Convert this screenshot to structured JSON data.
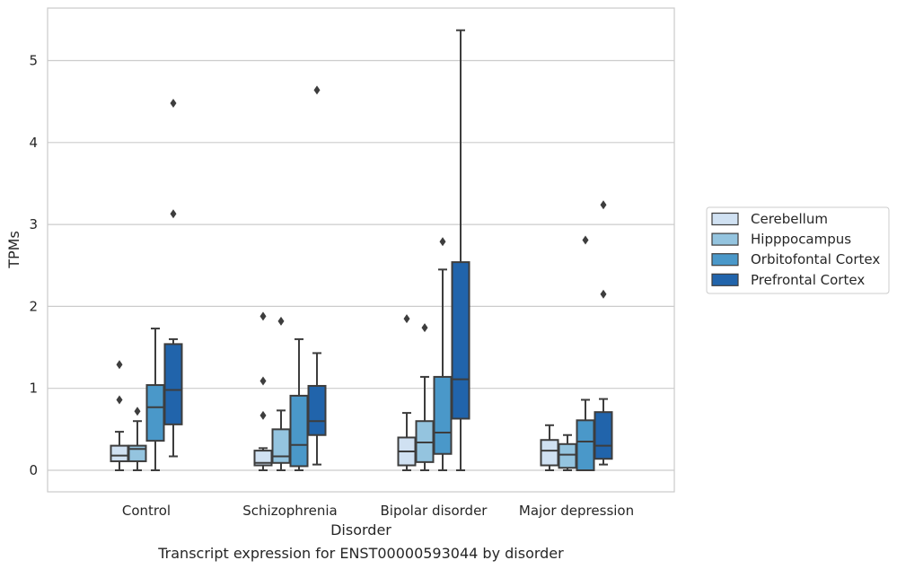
{
  "chart_data": {
    "type": "box",
    "caption": "Transcript expression for ENST00000593044 by disorder",
    "xlabel": "Disorder",
    "ylabel": "TPMs",
    "ylim": [
      -0.25,
      5.65
    ],
    "yticks": [
      "0",
      "1",
      "2",
      "3",
      "4",
      "5"
    ],
    "grid": true,
    "legend_position": "right",
    "categories": [
      "Control",
      "Schizophrenia",
      "Bipolar disorder",
      "Major depression"
    ],
    "series": [
      {
        "name": "Cerebellum",
        "color": "#d0e1f2",
        "boxes": [
          {
            "whislo": 0.0,
            "q1": 0.11,
            "med": 0.18,
            "q3": 0.3,
            "whishi": 0.47,
            "fliers": [
              0.86,
              1.29
            ]
          },
          {
            "whislo": 0.0,
            "q1": 0.06,
            "med": 0.09,
            "q3": 0.24,
            "whishi": 0.27,
            "fliers": [
              0.67,
              1.09,
              1.88
            ]
          },
          {
            "whislo": 0.0,
            "q1": 0.06,
            "med": 0.23,
            "q3": 0.4,
            "whishi": 0.7,
            "fliers": [
              1.85
            ]
          },
          {
            "whislo": 0.0,
            "q1": 0.06,
            "med": 0.24,
            "q3": 0.37,
            "whishi": 0.55,
            "fliers": []
          }
        ]
      },
      {
        "name": "Hipppocampus",
        "color": "#94c4df",
        "boxes": [
          {
            "whislo": 0.0,
            "q1": 0.11,
            "med": 0.26,
            "q3": 0.3,
            "whishi": 0.6,
            "fliers": [
              0.72
            ]
          },
          {
            "whislo": 0.0,
            "q1": 0.09,
            "med": 0.17,
            "q3": 0.5,
            "whishi": 0.73,
            "fliers": [
              1.82
            ]
          },
          {
            "whislo": 0.0,
            "q1": 0.1,
            "med": 0.34,
            "q3": 0.6,
            "whishi": 1.14,
            "fliers": [
              1.74
            ]
          },
          {
            "whislo": 0.0,
            "q1": 0.03,
            "med": 0.19,
            "q3": 0.32,
            "whishi": 0.43,
            "fliers": []
          }
        ]
      },
      {
        "name": "Orbitofontal Cortex",
        "color": "#4a98c9",
        "boxes": [
          {
            "whislo": 0.0,
            "q1": 0.36,
            "med": 0.77,
            "q3": 1.04,
            "whishi": 1.73,
            "fliers": []
          },
          {
            "whislo": 0.0,
            "q1": 0.05,
            "med": 0.31,
            "q3": 0.91,
            "whishi": 1.6,
            "fliers": []
          },
          {
            "whislo": 0.0,
            "q1": 0.2,
            "med": 0.46,
            "q3": 1.14,
            "whishi": 2.45,
            "fliers": [
              2.79
            ]
          },
          {
            "whislo": 0.0,
            "q1": 0.0,
            "med": 0.35,
            "q3": 0.61,
            "whishi": 0.86,
            "fliers": [
              2.81
            ]
          }
        ]
      },
      {
        "name": "Prefrontal Cortex",
        "color": "#2164ab",
        "boxes": [
          {
            "whislo": 0.17,
            "q1": 0.56,
            "med": 0.98,
            "q3": 1.54,
            "whishi": 1.6,
            "fliers": [
              3.13,
              4.48
            ]
          },
          {
            "whislo": 0.07,
            "q1": 0.43,
            "med": 0.6,
            "q3": 1.03,
            "whishi": 1.43,
            "fliers": [
              4.64
            ]
          },
          {
            "whislo": 0.0,
            "q1": 0.63,
            "med": 1.11,
            "q3": 2.54,
            "whishi": 5.37,
            "fliers": []
          },
          {
            "whislo": 0.07,
            "q1": 0.14,
            "med": 0.3,
            "q3": 0.71,
            "whishi": 0.87,
            "fliers": [
              2.15,
              3.24
            ]
          }
        ]
      }
    ]
  }
}
